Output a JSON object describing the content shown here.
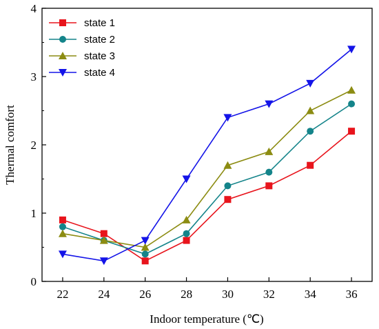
{
  "chart_data": {
    "type": "line",
    "title": "",
    "xlabel": "Indoor temperature (℃)",
    "ylabel": "Thermal comfort",
    "x": [
      22,
      24,
      26,
      28,
      30,
      32,
      34,
      36
    ],
    "xlim": [
      21,
      37
    ],
    "ylim": [
      0,
      4
    ],
    "x_ticks": [
      "22",
      "24",
      "26",
      "28",
      "30",
      "32",
      "34",
      "36"
    ],
    "y_ticks": [
      "0",
      "1",
      "2",
      "3",
      "4"
    ],
    "grid": false,
    "legend_position": "top-left",
    "series": [
      {
        "name": "state 1",
        "color": "#e8141c",
        "marker": "square",
        "values": [
          0.9,
          0.7,
          0.3,
          0.6,
          1.2,
          1.4,
          1.7,
          2.2
        ]
      },
      {
        "name": "state 2",
        "color": "#14848a",
        "marker": "circle",
        "values": [
          0.8,
          0.6,
          0.4,
          0.7,
          1.4,
          1.6,
          2.2,
          2.6
        ]
      },
      {
        "name": "state 3",
        "color": "#8c8c12",
        "marker": "triangle-up",
        "values": [
          0.7,
          0.6,
          0.5,
          0.9,
          1.7,
          1.9,
          2.5,
          2.8
        ]
      },
      {
        "name": "state 4",
        "color": "#1414e8",
        "marker": "triangle-down",
        "values": [
          0.4,
          0.3,
          0.6,
          1.5,
          2.4,
          2.6,
          2.9,
          3.4
        ]
      }
    ]
  }
}
